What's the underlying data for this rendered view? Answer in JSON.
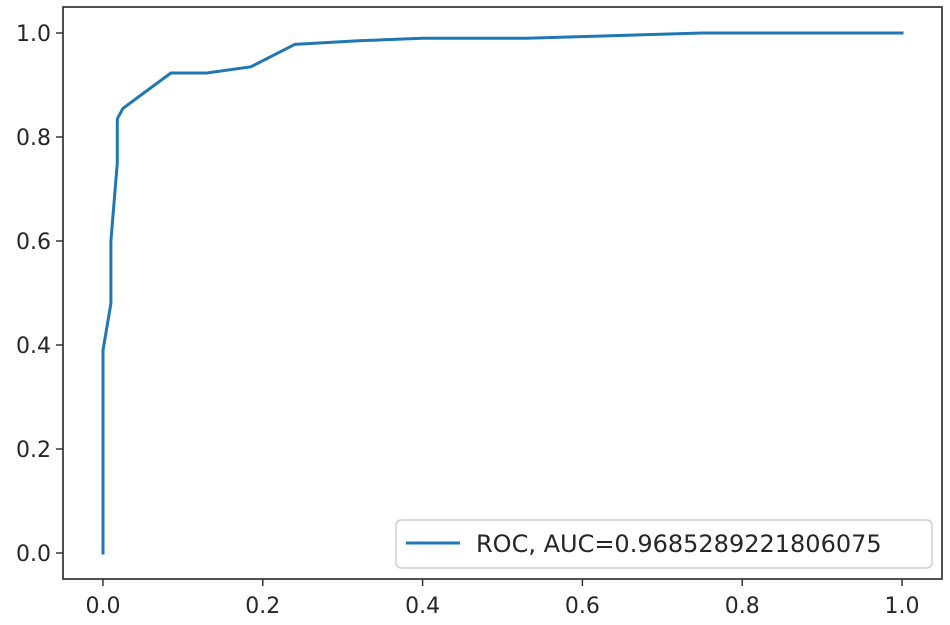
{
  "chart_data": {
    "type": "line",
    "title": "",
    "xlabel": "",
    "ylabel": "",
    "xlim": [
      -0.05,
      1.05
    ],
    "ylim": [
      -0.05,
      1.05
    ],
    "x_ticks": [
      "0.0",
      "0.2",
      "0.4",
      "0.6",
      "0.8",
      "1.0"
    ],
    "y_ticks": [
      "0.0",
      "0.2",
      "0.4",
      "0.6",
      "0.8",
      "1.0"
    ],
    "grid": false,
    "legend_position": "lower-right",
    "series": [
      {
        "name": "ROC, AUC=0.9685289221806075",
        "color": "#1f77b4",
        "x": [
          0.0,
          0.0,
          0.01,
          0.01,
          0.018,
          0.018,
          0.025,
          0.085,
          0.13,
          0.185,
          0.24,
          0.32,
          0.4,
          0.53,
          0.75,
          1.0
        ],
        "y": [
          0.0,
          0.39,
          0.48,
          0.6,
          0.75,
          0.835,
          0.855,
          0.923,
          0.923,
          0.935,
          0.978,
          0.985,
          0.99,
          0.99,
          1.0,
          1.0
        ]
      }
    ]
  }
}
